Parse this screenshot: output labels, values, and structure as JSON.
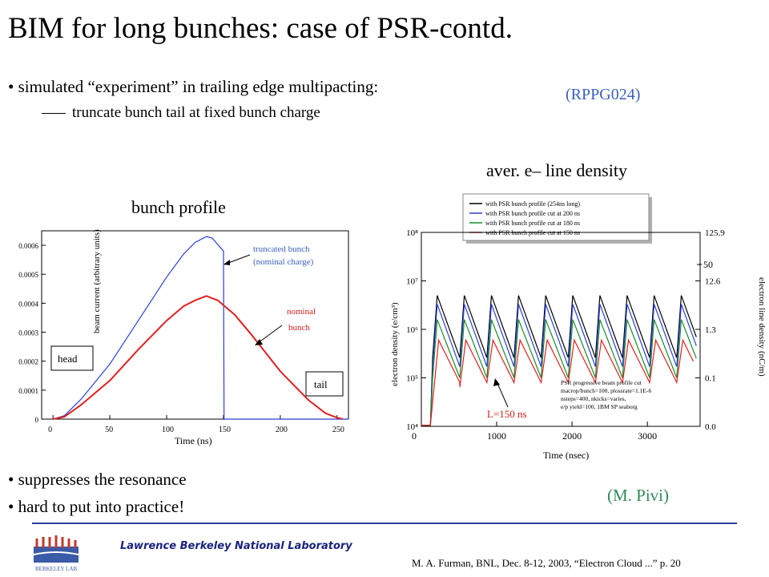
{
  "slide": {
    "title": "BIM for long bunches: case of PSR-contd.",
    "bullet1": "• simulated “experiment” in trailing edge multipacting:",
    "subbullet1": "truncate bunch tail at fixed bunch charge",
    "ref_label": "(RPPG024)",
    "bullet2": "• suppresses the resonance",
    "bullet3": "• hard to put into practice!",
    "credit": "(M. Pivi)",
    "left_caption": "bunch profile",
    "right_caption": "aver. e– line density",
    "footer_lab": "Lawrence Berkeley National Laboratory",
    "footer_text": "M. A. Furman, BNL, Dec. 8-12, 2003, “Electron Cloud ...” p. 20",
    "logo_text": "BERKELEY LAB"
  },
  "chart_data": [
    {
      "type": "line",
      "xlabel": "Time (ns)",
      "ylabel": "beam current (arbitrary units)",
      "xlim": [
        -10,
        260
      ],
      "ylim": [
        0,
        0.00065
      ],
      "xticks": [
        "0",
        "50",
        "100",
        "150",
        "200",
        "250"
      ],
      "yticks": [
        "0",
        "0.0001",
        "0.0002",
        "0.0003",
        "0.0004",
        "0.0005",
        "0.0006"
      ],
      "series": [
        {
          "name": "truncated bunch (nominal charge)",
          "color": "#2a3fd6",
          "x": [
            0,
            10,
            25,
            50,
            75,
            100,
            115,
            125,
            135,
            140,
            150,
            150.5,
            260
          ],
          "y": [
            0,
            1.2e-05,
            7e-05,
            0.00019,
            0.00034,
            0.00049,
            0.00057,
            0.00061,
            0.00063,
            0.000625,
            0.00058,
            0,
            0
          ]
        },
        {
          "name": "nominal bunch",
          "color": "#e02020",
          "x": [
            0,
            10,
            25,
            50,
            75,
            100,
            115,
            125,
            135,
            145,
            160,
            175,
            200,
            225,
            240,
            250,
            255
          ],
          "y": [
            0,
            8e-06,
            5e-05,
            0.000133,
            0.00024,
            0.00034,
            0.00039,
            0.00041,
            0.000425,
            0.00041,
            0.00036,
            0.00029,
            0.000165,
            6.5e-05,
            2e-05,
            5e-06,
            0
          ]
        }
      ],
      "annotations": [
        "truncated bunch",
        "(nominal  charge)",
        "nominal",
        "bunch",
        "head",
        "tail"
      ]
    },
    {
      "type": "line",
      "xlabel": "Time (nsec)",
      "ylabel": "electron density (e/cm³)",
      "ylabel_right": "electron line density (nC/m)",
      "xlim": [
        0,
        3700
      ],
      "y_scale": "log",
      "ylim": [
        10000,
        100000000
      ],
      "xticks": [
        "0",
        "1000",
        "2000",
        "3000"
      ],
      "yticks": [
        "10⁴",
        "10⁵",
        "10⁶",
        "10⁷",
        "10⁸"
      ],
      "yticks_right": [
        "0.0",
        "0.1",
        "1.3",
        "12.6",
        "125.9"
      ],
      "right_marker": "50",
      "pulse_period_ns": 360,
      "series": [
        {
          "name": "with PSR bunch profile (254ns long)",
          "color": "#000000",
          "peak": 5000000,
          "trough": 260000
        },
        {
          "name": "with PSR bunch profile cut at 200 ns",
          "color": "#2a3fd6",
          "peak": 3300000,
          "trough": 170000
        },
        {
          "name": "with PSR bunch profile cut at 180 ns",
          "color": "#1a8a2a",
          "peak": 1600000,
          "trough": 100000
        },
        {
          "name": "with PSR bunch profile cut at 150 ns",
          "color": "#e02020",
          "peak": 600000,
          "trough": 80000
        }
      ],
      "note": [
        "PSR progressive beam profile cut",
        "macrop/bunch=100, plossrate=1.1E-6",
        "nsteps=400, nkicks=varies,",
        "e/p yield=100, 1BM SP seaborg"
      ],
      "annotation": "L=150 ns"
    }
  ]
}
